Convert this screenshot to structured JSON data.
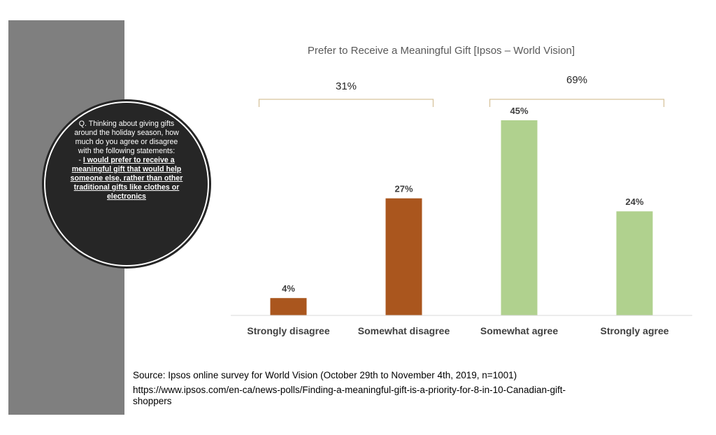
{
  "question": {
    "intro": "Q. Thinking about giving gifts around the holiday season, how much do you agree or disagree with the following statements:",
    "dash": "- ",
    "statement": "I would prefer to receive a meaningful gift that would help someone else, rather than other traditional gifts like clothes or electronics"
  },
  "source": {
    "text": "Source:  Ipsos online survey for World Vision (October 29th to November 4th, 2019, n=1001)",
    "url": "https://www.ipsos.com/en-ca/news-polls/Finding-a-meaningful-gift-is-a-priority-for-8-in-10-Canadian-gift-shoppers"
  },
  "colors": {
    "disagree": "#aa561e",
    "agree": "#b0d18e",
    "bracket": "#d6c39c",
    "panel": "#7f7f7f",
    "circle": "#262626"
  },
  "chart_data": {
    "type": "bar",
    "title": "Prefer to Receive a Meaningful Gift [Ipsos – World Vision]",
    "categories": [
      "Strongly disagree",
      "Somewhat disagree",
      "Somewhat agree",
      "Strongly agree"
    ],
    "values": [
      4,
      27,
      45,
      24
    ],
    "value_labels": [
      "4%",
      "27%",
      "45%",
      "24%"
    ],
    "bar_colors": [
      "#aa561e",
      "#aa561e",
      "#b0d18e",
      "#b0d18e"
    ],
    "ylim": [
      0,
      50
    ],
    "grid": false,
    "legend": "none",
    "groups": [
      {
        "label": "31%",
        "from": 0,
        "to": 1
      },
      {
        "label": "69%",
        "from": 2,
        "to": 3
      }
    ]
  }
}
